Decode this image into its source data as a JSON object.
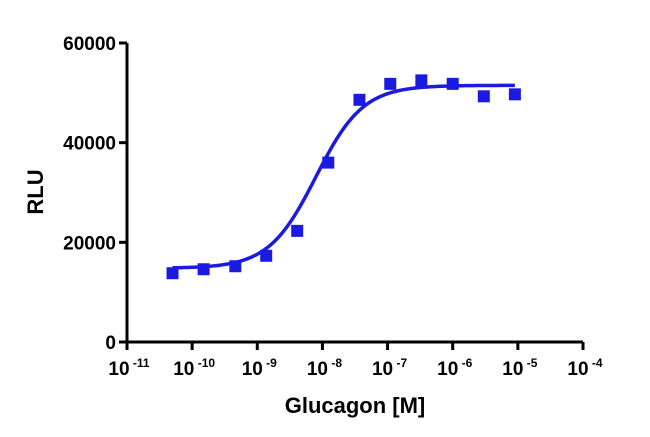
{
  "chart_data": {
    "type": "scatter",
    "xlabel": "Glucagon [M]",
    "ylabel": "RLU",
    "xscale": "log",
    "xlim": [
      1e-11,
      0.0001
    ],
    "ylim": [
      0,
      60000
    ],
    "x_ticks": [
      {
        "base": "10",
        "exp": "-11"
      },
      {
        "base": "10",
        "exp": "-10"
      },
      {
        "base": "10",
        "exp": "-9"
      },
      {
        "base": "10",
        "exp": "-8"
      },
      {
        "base": "10",
        "exp": "-7"
      },
      {
        "base": "10",
        "exp": "-6"
      },
      {
        "base": "10",
        "exp": "-5"
      },
      {
        "base": "10",
        "exp": "-4"
      }
    ],
    "y_ticks": [
      "0",
      "20000",
      "40000",
      "60000"
    ],
    "grid": false,
    "colors": {
      "series": "#1a1ae0",
      "axis": "#000000"
    },
    "points": [
      {
        "x": 5e-11,
        "y": 13800
      },
      {
        "x": 1.5e-10,
        "y": 14600
      },
      {
        "x": 4.6e-10,
        "y": 15200
      },
      {
        "x": 1.37e-09,
        "y": 17300
      },
      {
        "x": 4.1e-09,
        "y": 22300
      },
      {
        "x": 1.23e-08,
        "y": 36000
      },
      {
        "x": 3.7e-08,
        "y": 48600
      },
      {
        "x": 1.1e-07,
        "y": 51800
      },
      {
        "x": 3.3e-07,
        "y": 52500
      },
      {
        "x": 1e-06,
        "y": 51800
      },
      {
        "x": 3e-06,
        "y": 49300
      },
      {
        "x": 9e-06,
        "y": 49700
      }
    ],
    "fit_curve": {
      "model": "4PL",
      "bottom": 14800,
      "top": 51500,
      "log_ec50": -8.1,
      "hill_slope": 1.2,
      "x_range": [
        5e-11,
        9e-06
      ]
    }
  }
}
